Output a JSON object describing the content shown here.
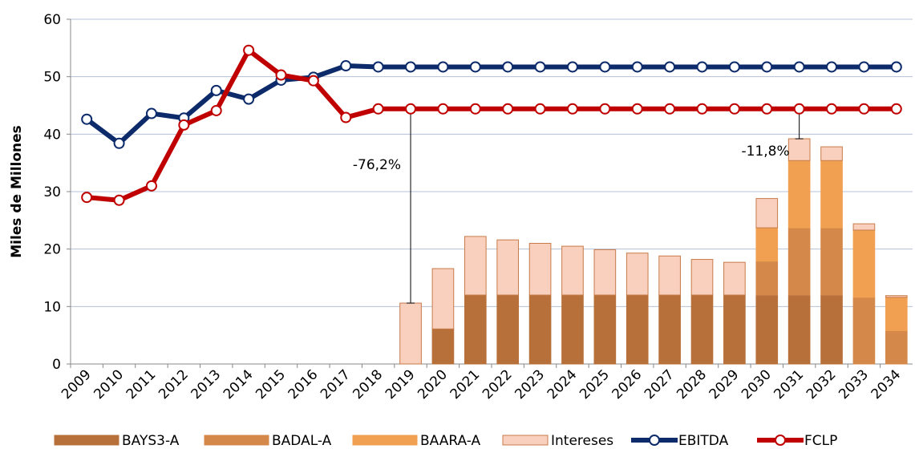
{
  "chart_data": {
    "type": "bar",
    "ylabel": "Miles de Millones",
    "categories": [
      "2009",
      "2010",
      "2011",
      "2012",
      "2013",
      "2014",
      "2015",
      "2016",
      "2017",
      "2018",
      "2019",
      "2020",
      "2021",
      "2022",
      "2023",
      "2024",
      "2025",
      "2026",
      "2027",
      "2028",
      "2029",
      "2030",
      "2031",
      "2032",
      "2033",
      "2034"
    ],
    "series": [
      {
        "name": "BAYS3-A",
        "type": "bar",
        "color": "#b8703a",
        "values": [
          null,
          null,
          null,
          null,
          null,
          null,
          null,
          null,
          null,
          null,
          0,
          6.1,
          12,
          12,
          12,
          12,
          12,
          12,
          12,
          12,
          12,
          12,
          12,
          12,
          0,
          0
        ]
      },
      {
        "name": "BADAL-A",
        "type": "bar",
        "color": "#d4894a",
        "values": [
          null,
          null,
          null,
          null,
          null,
          null,
          null,
          null,
          null,
          null,
          0,
          0,
          0,
          0,
          0,
          0,
          0,
          0,
          0,
          0,
          0,
          5.9,
          11.7,
          11.7,
          11.6,
          5.8
        ]
      },
      {
        "name": "BAARA-A",
        "type": "bar",
        "color": "#f0a050",
        "values": [
          null,
          null,
          null,
          null,
          null,
          null,
          null,
          null,
          null,
          null,
          0,
          0,
          0,
          0,
          0,
          0,
          0,
          0,
          0,
          0,
          0,
          5.8,
          11.7,
          11.7,
          11.7,
          5.8
        ]
      },
      {
        "name": "Intereses",
        "type": "bar",
        "color": "#f9d0bd",
        "values": [
          null,
          null,
          null,
          null,
          null,
          null,
          null,
          null,
          null,
          null,
          10.6,
          10.5,
          10.2,
          9.6,
          9.0,
          8.5,
          7.9,
          7.3,
          6.8,
          6.2,
          5.7,
          5.1,
          3.8,
          2.4,
          1.1,
          0.3
        ]
      },
      {
        "name": "EBITDA",
        "type": "line",
        "color": "#0d2b6b",
        "values": [
          42.6,
          38.4,
          43.6,
          42.8,
          47.6,
          46.1,
          49.4,
          49.9,
          51.9,
          51.7,
          51.7,
          51.7,
          51.7,
          51.7,
          51.7,
          51.7,
          51.7,
          51.7,
          51.7,
          51.7,
          51.7,
          51.7,
          51.7,
          51.7,
          51.7,
          51.7
        ]
      },
      {
        "name": "FCLP",
        "type": "line",
        "color": "#c00000",
        "values": [
          29,
          28.5,
          31,
          41.6,
          44.1,
          54.6,
          50.3,
          49.3,
          42.9,
          44.4,
          44.4,
          44.4,
          44.4,
          44.4,
          44.4,
          44.4,
          44.4,
          44.4,
          44.4,
          44.4,
          44.4,
          44.4,
          44.4,
          44.4,
          44.4,
          44.4
        ]
      }
    ],
    "annotations": [
      {
        "text": "-76,2%",
        "x": "2019"
      },
      {
        "text": "-11,8%",
        "x": "2031"
      }
    ],
    "ylim": [
      0,
      60
    ],
    "yticks": [
      0,
      10,
      20,
      30,
      40,
      50,
      60
    ],
    "grid": true,
    "legend": "bottom"
  }
}
